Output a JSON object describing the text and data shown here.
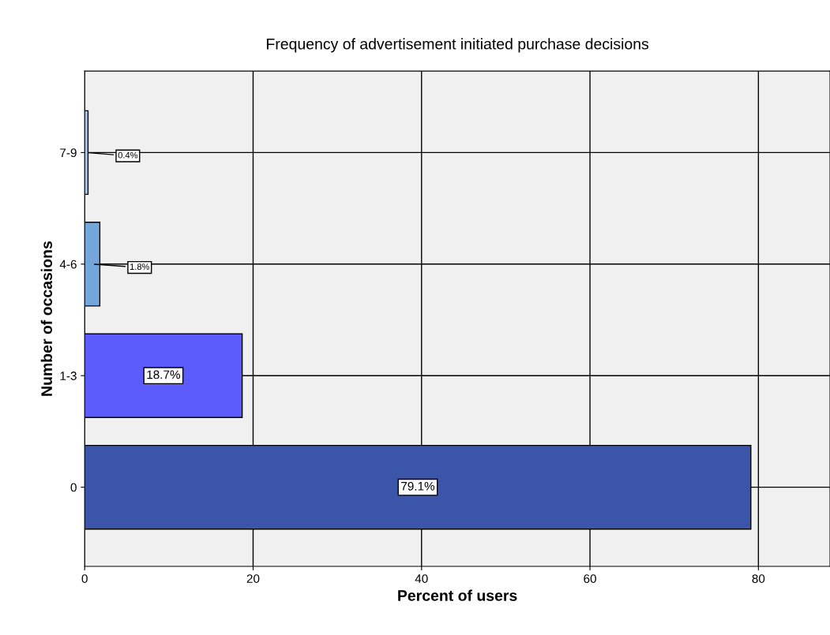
{
  "chart_data": {
    "type": "bar",
    "orientation": "horizontal",
    "title": "Frequency of advertisement initiated purchase decisions",
    "xlabel": "Percent of users",
    "ylabel": "Number of occasions",
    "categories": [
      "7-9",
      "4-6",
      "1-3",
      "0"
    ],
    "values": [
      0.4,
      1.8,
      18.7,
      79.1
    ],
    "colors": [
      "#a9c9ea",
      "#74a6d9",
      "#5b5cfb",
      "#3b56a8"
    ],
    "value_labels": [
      "0.4%",
      "1.8%",
      "18.7%",
      "79.1%"
    ],
    "xlim": [
      0,
      88.5
    ],
    "xticks": [
      0,
      20,
      40,
      60,
      80
    ],
    "grid": true
  }
}
